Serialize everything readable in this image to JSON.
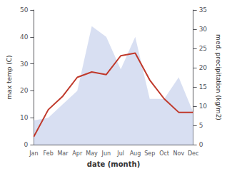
{
  "chart_data": {
    "type": "line",
    "categories": [
      "Jan",
      "Feb",
      "Mar",
      "Apr",
      "May",
      "Jun",
      "Jul",
      "Aug",
      "Sep",
      "Oct",
      "Nov",
      "Dec"
    ],
    "series": [
      {
        "type": "area",
        "color": "#b8c4e8",
        "values": [
          9,
          10,
          15,
          20,
          44,
          40,
          28,
          40,
          17,
          17,
          25,
          12
        ]
      },
      {
        "type": "line",
        "color": "#c0392b",
        "values": [
          3,
          13,
          18,
          25,
          27,
          26,
          33,
          34,
          24,
          17,
          12,
          12
        ]
      }
    ],
    "xlabel": "date (month)",
    "ylabel": "max temp (C)",
    "y2label": "med. precipitation (kg/m2)",
    "ylim": [
      0,
      50
    ],
    "yticks": [
      0,
      10,
      20,
      30,
      40,
      50
    ],
    "y2lim": [
      0,
      35
    ],
    "y2ticks": [
      0,
      5,
      10,
      15,
      20,
      25,
      30,
      35
    ],
    "grid": false
  }
}
